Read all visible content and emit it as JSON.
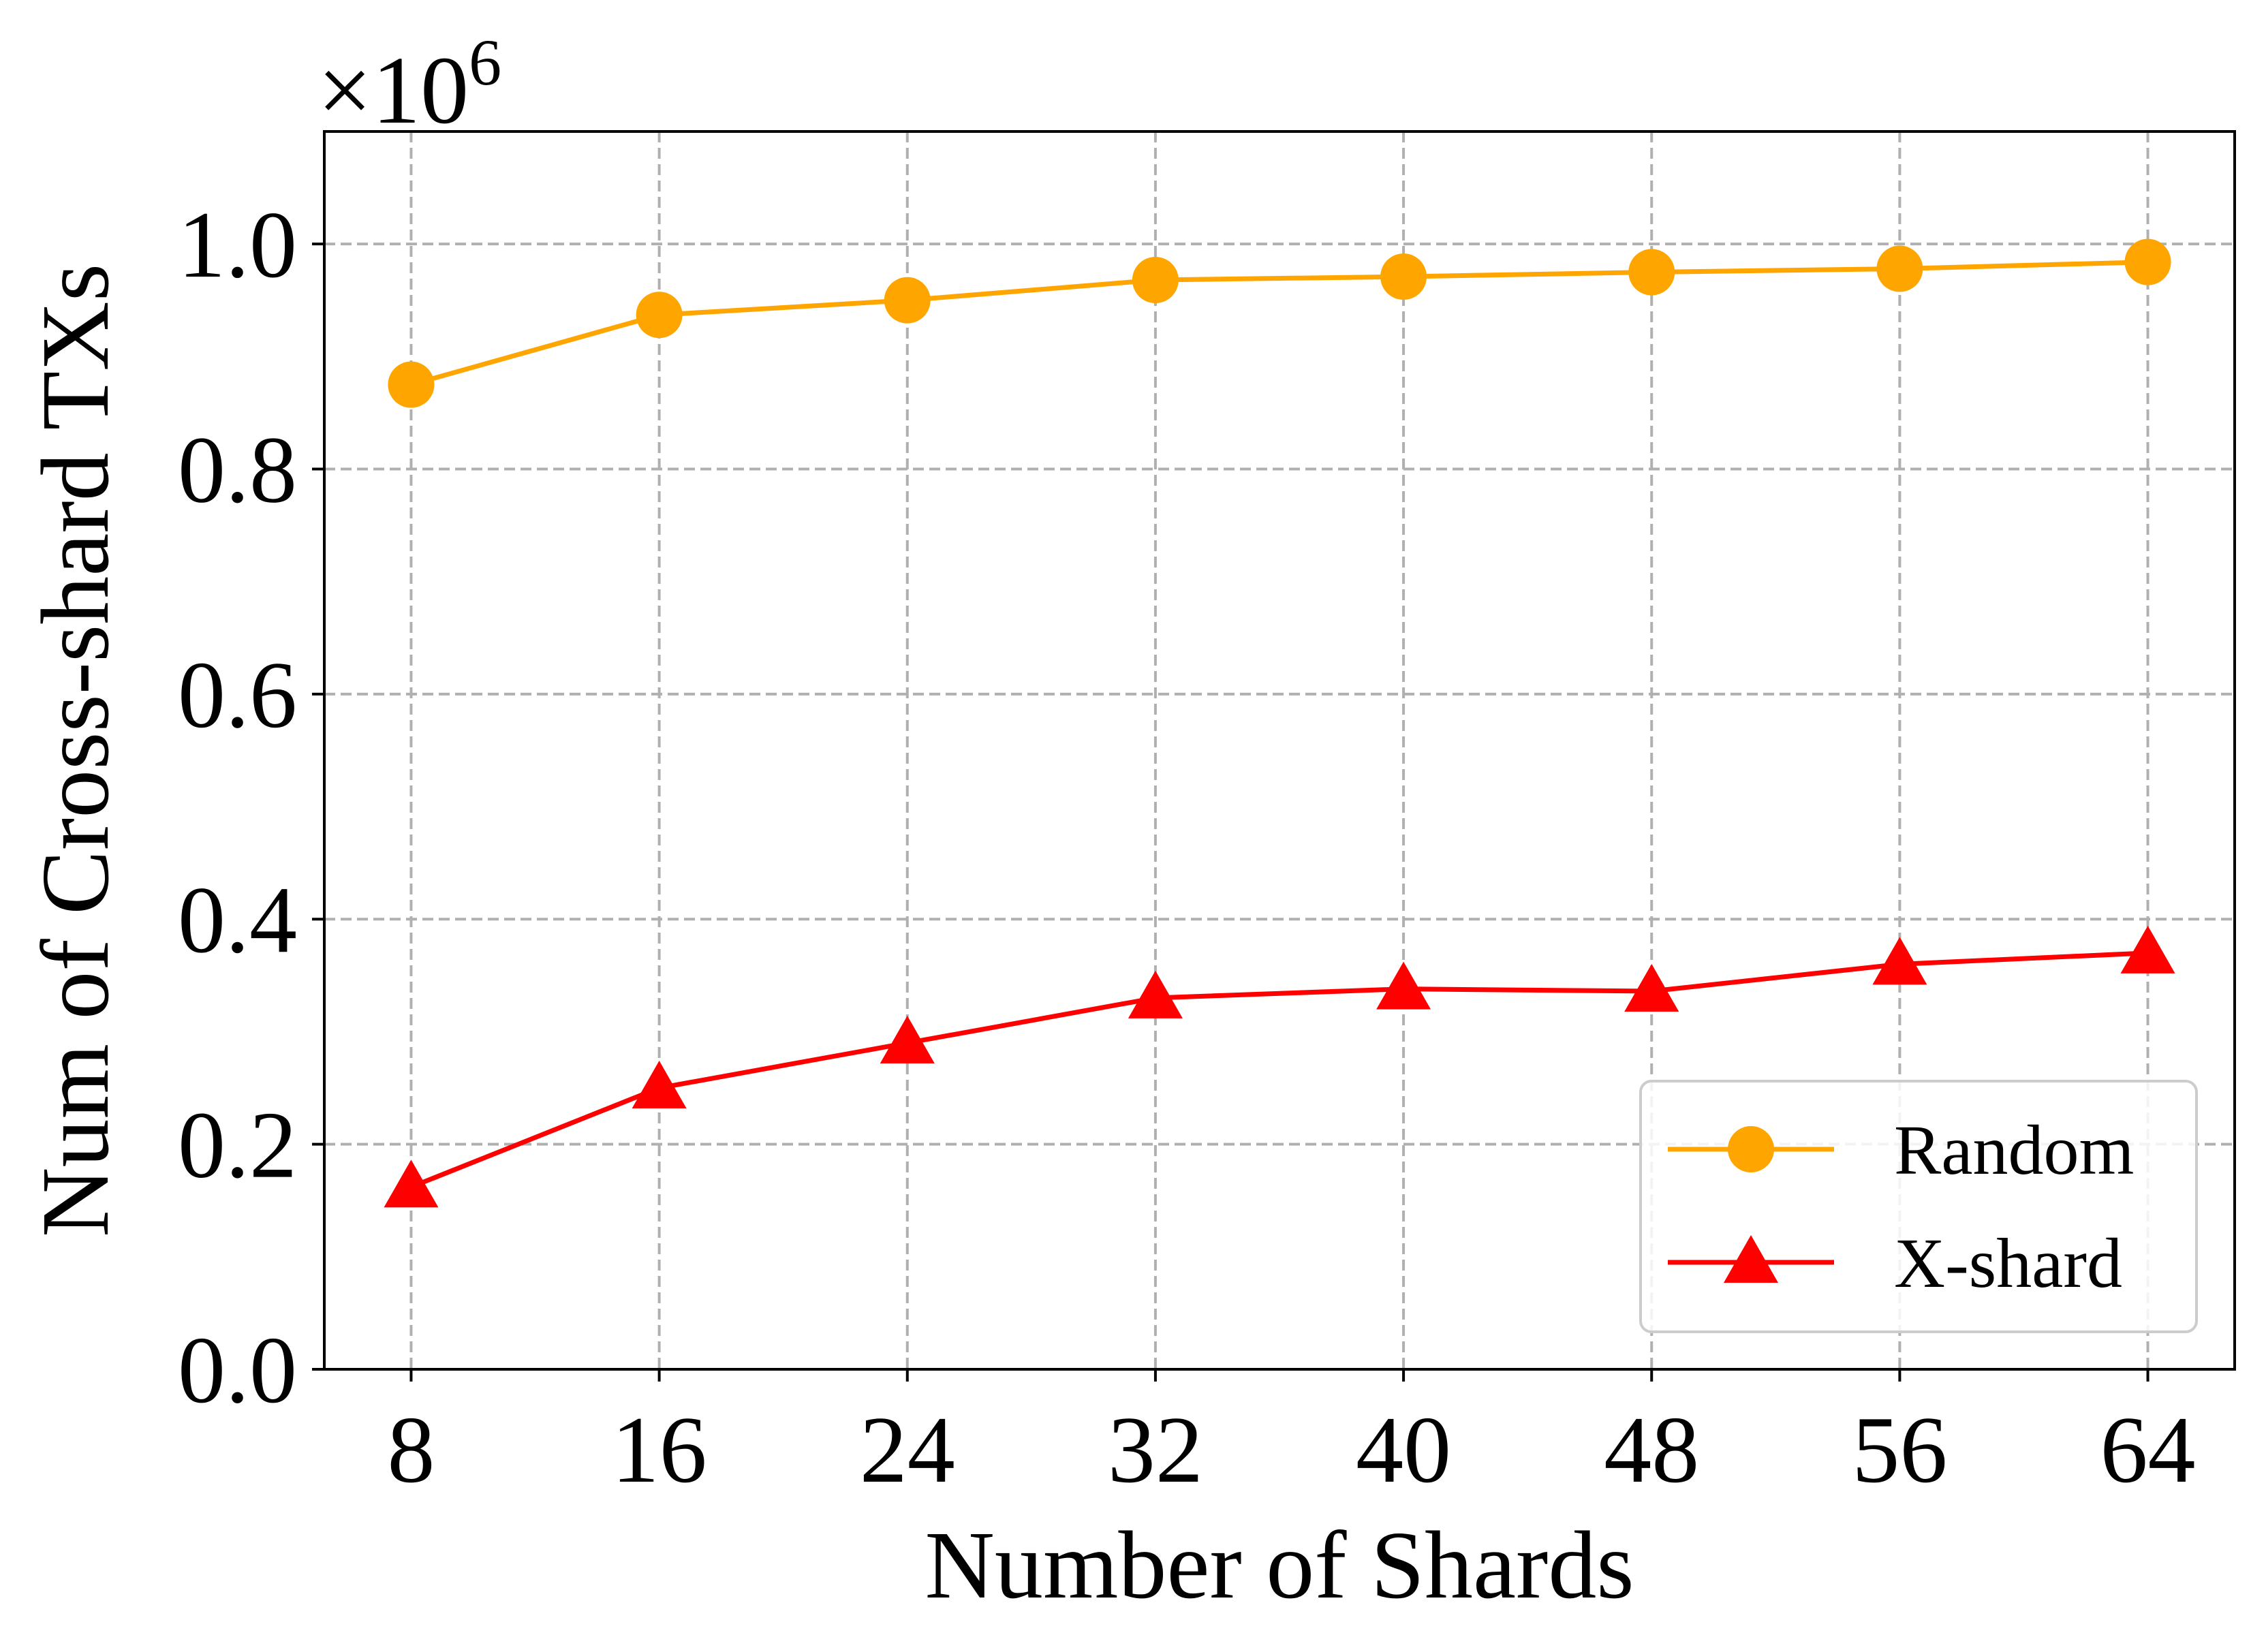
{
  "chart_data": {
    "type": "line",
    "xlabel": "Number of Shards",
    "ylabel": "Num of Cross-shard TXs",
    "y_multiplier_label": "×10",
    "y_multiplier_exponent": "6",
    "x": [
      8,
      16,
      24,
      32,
      40,
      48,
      56,
      64
    ],
    "x_tick_labels": [
      "8",
      "16",
      "24",
      "32",
      "40",
      "48",
      "56",
      "64"
    ],
    "xlim": [
      5.2,
      66.8
    ],
    "y_ticks": [
      0.0,
      0.2,
      0.4,
      0.6,
      0.8,
      1.0
    ],
    "y_tick_labels": [
      "0.0",
      "0.2",
      "0.4",
      "0.6",
      "0.8",
      "1.0"
    ],
    "ylim": [
      0.0,
      1.1
    ],
    "grid": true,
    "legend_position": "bottom-right",
    "series": [
      {
        "name": "Random",
        "color": "#FFA500",
        "marker": "circle",
        "values": [
          0.875,
          0.937,
          0.95,
          0.968,
          0.971,
          0.975,
          0.978,
          0.984
        ]
      },
      {
        "name": "X-shard",
        "color": "#FF0000",
        "marker": "triangle",
        "values": [
          0.162,
          0.25,
          0.29,
          0.33,
          0.338,
          0.336,
          0.36,
          0.37
        ]
      }
    ]
  }
}
